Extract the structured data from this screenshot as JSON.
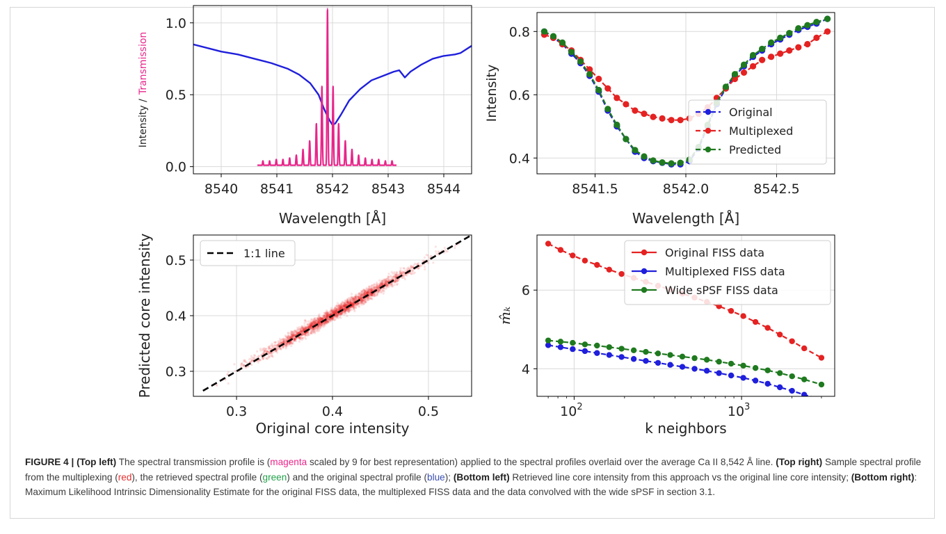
{
  "colors": {
    "blue": "#1f1fdc",
    "magenta": "#e8258a",
    "red": "#e52222",
    "green": "#1f7a1f",
    "grid": "#d9d9d9"
  },
  "chart_data": [
    {
      "id": "top_left",
      "type": "line",
      "xlabel": "Wavelength [Å]",
      "ylabel_part1": "Intensity /",
      "ylabel_part2": "Transmission",
      "xlim": [
        8539.5,
        8544.5
      ],
      "ylim": [
        -0.05,
        1.12
      ],
      "xticks": [
        8540,
        8541,
        8542,
        8543,
        8544
      ],
      "yticks": [
        0.0,
        0.5,
        1.0
      ],
      "ytick_labels": [
        "0.0",
        "0.5",
        "1.0"
      ],
      "grid": true,
      "series": [
        {
          "kind": "intensity",
          "x": [
            8539.5,
            8539.8,
            8540.0,
            8540.3,
            8540.6,
            8540.9,
            8541.2,
            8541.4,
            8541.6,
            8541.75,
            8541.85,
            8541.95,
            8542.0,
            8542.05,
            8542.15,
            8542.3,
            8542.5,
            8542.7,
            8542.9,
            8543.1,
            8543.2,
            8543.3,
            8543.4,
            8543.6,
            8543.8,
            8544.0,
            8544.2,
            8544.3,
            8544.5
          ],
          "y": [
            0.85,
            0.82,
            0.8,
            0.78,
            0.75,
            0.72,
            0.68,
            0.64,
            0.58,
            0.5,
            0.4,
            0.32,
            0.29,
            0.3,
            0.36,
            0.46,
            0.54,
            0.6,
            0.63,
            0.66,
            0.67,
            0.62,
            0.66,
            0.71,
            0.75,
            0.77,
            0.78,
            0.79,
            0.84
          ]
        },
        {
          "kind": "transmission",
          "x_start": 8540.65,
          "x_end": 8543.15,
          "peaks": [
            {
              "x": 8540.75,
              "h": 0.04
            },
            {
              "x": 8540.87,
              "h": 0.04
            },
            {
              "x": 8540.99,
              "h": 0.05
            },
            {
              "x": 8541.11,
              "h": 0.05
            },
            {
              "x": 8541.23,
              "h": 0.06
            },
            {
              "x": 8541.35,
              "h": 0.08
            },
            {
              "x": 8541.47,
              "h": 0.12
            },
            {
              "x": 8541.59,
              "h": 0.18
            },
            {
              "x": 8541.71,
              "h": 0.3
            },
            {
              "x": 8541.81,
              "h": 0.56
            },
            {
              "x": 8541.91,
              "h": 1.1
            },
            {
              "x": 8542.01,
              "h": 0.56
            },
            {
              "x": 8542.11,
              "h": 0.3
            },
            {
              "x": 8542.23,
              "h": 0.18
            },
            {
              "x": 8542.35,
              "h": 0.12
            },
            {
              "x": 8542.47,
              "h": 0.08
            },
            {
              "x": 8542.59,
              "h": 0.06
            },
            {
              "x": 8542.71,
              "h": 0.05
            },
            {
              "x": 8542.83,
              "h": 0.05
            },
            {
              "x": 8542.95,
              "h": 0.04
            },
            {
              "x": 8543.07,
              "h": 0.04
            }
          ]
        }
      ]
    },
    {
      "id": "top_right",
      "type": "line",
      "xlabel": "Wavelength [Å]",
      "ylabel": "Intensity",
      "xlim": [
        8541.18,
        8542.82
      ],
      "ylim": [
        0.35,
        0.86
      ],
      "xticks": [
        8541.5,
        8542.0,
        8542.5
      ],
      "xtick_labels": [
        "8541.5",
        "8542.0",
        "8542.5"
      ],
      "yticks": [
        0.4,
        0.6,
        0.8
      ],
      "ytick_labels": [
        "0.4",
        "0.6",
        "0.8"
      ],
      "grid": true,
      "legend": "right",
      "x": [
        8541.22,
        8541.27,
        8541.32,
        8541.37,
        8541.42,
        8541.47,
        8541.52,
        8541.57,
        8541.62,
        8541.67,
        8541.72,
        8541.77,
        8541.82,
        8541.87,
        8541.92,
        8541.97,
        8542.02,
        8542.07,
        8542.12,
        8542.17,
        8542.22,
        8542.27,
        8542.32,
        8542.37,
        8542.42,
        8542.47,
        8542.52,
        8542.57,
        8542.62,
        8542.67,
        8542.72,
        8542.78
      ],
      "series": [
        {
          "name": "Original",
          "color_key": "blue",
          "y": [
            0.8,
            0.78,
            0.76,
            0.73,
            0.7,
            0.66,
            0.61,
            0.55,
            0.5,
            0.46,
            0.42,
            0.4,
            0.39,
            0.385,
            0.38,
            0.38,
            0.39,
            0.43,
            0.5,
            0.57,
            0.62,
            0.66,
            0.69,
            0.72,
            0.74,
            0.76,
            0.775,
            0.79,
            0.805,
            0.815,
            0.825,
            0.84
          ]
        },
        {
          "name": "Multiplexed",
          "color_key": "red",
          "y": [
            0.79,
            0.78,
            0.76,
            0.74,
            0.71,
            0.68,
            0.65,
            0.62,
            0.59,
            0.57,
            0.55,
            0.54,
            0.53,
            0.525,
            0.52,
            0.52,
            0.525,
            0.54,
            0.56,
            0.59,
            0.62,
            0.65,
            0.67,
            0.69,
            0.71,
            0.72,
            0.73,
            0.74,
            0.75,
            0.76,
            0.78,
            0.8
          ]
        },
        {
          "name": "Predicted",
          "color_key": "green",
          "y": [
            0.8,
            0.785,
            0.765,
            0.735,
            0.705,
            0.665,
            0.615,
            0.555,
            0.505,
            0.46,
            0.425,
            0.405,
            0.392,
            0.386,
            0.383,
            0.385,
            0.395,
            0.435,
            0.505,
            0.575,
            0.625,
            0.665,
            0.695,
            0.725,
            0.745,
            0.765,
            0.78,
            0.795,
            0.81,
            0.82,
            0.83,
            0.84
          ]
        }
      ]
    },
    {
      "id": "bottom_left",
      "type": "scatter",
      "xlabel": "Original core intensity",
      "ylabel": "Predicted core intensity",
      "xlim": [
        0.255,
        0.545
      ],
      "ylim": [
        0.255,
        0.545
      ],
      "xticks": [
        0.3,
        0.4,
        0.5
      ],
      "yticks": [
        0.3,
        0.4,
        0.5
      ],
      "xtick_labels": [
        "0.3",
        "0.4",
        "0.5"
      ],
      "ytick_labels": [
        "0.3",
        "0.4",
        "0.5"
      ],
      "grid": true,
      "legend": "top-left",
      "line_label": "1:1 line",
      "one_to_one": [
        0.265,
        0.545
      ],
      "cloud": {
        "x_range": [
          0.27,
          0.54
        ],
        "slope": 1.0,
        "offset": 0.002,
        "spread": 0.008
      }
    },
    {
      "id": "bottom_right",
      "type": "line",
      "xlabel": "k neighbors",
      "ylabel": "m̂ₖ",
      "xscale": "log",
      "xlim": [
        60,
        3600
      ],
      "ylim": [
        3.3,
        7.4
      ],
      "xticks": [
        100,
        1000
      ],
      "yticks": [
        4,
        6
      ],
      "ytick_labels": [
        "4",
        "6"
      ],
      "grid": true,
      "legend": "top-right",
      "x": [
        70,
        83,
        98,
        116,
        137,
        162,
        192,
        227,
        268,
        317,
        375,
        443,
        524,
        620,
        733,
        866,
        1024,
        1211,
        1432,
        1693,
        2002,
        2367,
        3000
      ],
      "series": [
        {
          "name": "Original FISS data",
          "color_key": "red",
          "y": [
            7.18,
            7.02,
            6.88,
            6.75,
            6.64,
            6.52,
            6.41,
            6.31,
            6.21,
            6.11,
            6.01,
            5.91,
            5.81,
            5.7,
            5.59,
            5.47,
            5.34,
            5.19,
            5.04,
            4.87,
            4.7,
            4.52,
            4.28
          ]
        },
        {
          "name": "Multiplexed FISS data",
          "color_key": "blue",
          "y": [
            4.6,
            4.55,
            4.5,
            4.45,
            4.4,
            4.35,
            4.3,
            4.25,
            4.2,
            4.15,
            4.1,
            4.05,
            4.0,
            3.95,
            3.89,
            3.83,
            3.77,
            3.7,
            3.62,
            3.53,
            3.44,
            3.34,
            3.22
          ]
        },
        {
          "name": "Wide sPSF FISS data",
          "color_key": "green",
          "y": [
            4.72,
            4.69,
            4.66,
            4.62,
            4.59,
            4.55,
            4.51,
            4.47,
            4.43,
            4.39,
            4.35,
            4.31,
            4.27,
            4.23,
            4.18,
            4.13,
            4.08,
            4.02,
            3.96,
            3.89,
            3.81,
            3.73,
            3.6
          ]
        }
      ]
    }
  ],
  "caption": {
    "label": "FIGURE 4 |",
    "s1_bold": "(Top left)",
    "s1_text_a": " The spectral transmission profile is (",
    "s1_magenta": "magenta",
    "s1_text_b": " scaled by 9 for best representation) applied to the spectral profiles overlaid over the average Ca II 8,542 Å line. ",
    "s2_bold": "(Top right)",
    "s2_text_a": " Sample spectral profile from the multiplexing (",
    "s2_red": "red",
    "s2_text_b": "), the retrieved spectral profile (",
    "s2_green": "green",
    "s2_text_c": ") and the original spectral profile (",
    "s2_blue": "blue",
    "s2_text_d": "); ",
    "s3_bold": "(Bottom left)",
    "s3_text": " Retrieved line core intensity from this approach vs the original line core intensity; ",
    "s4_bold": "(Bottom right)",
    "s4_text": ": Maximum Likelihood Intrinsic Dimensionality Estimate for the original FISS data, the multiplexed FISS data and the data convolved with the wide sPSF in section 3.1."
  }
}
